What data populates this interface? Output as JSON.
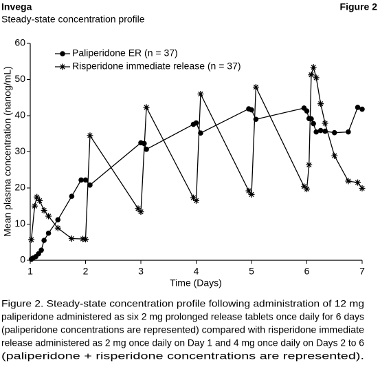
{
  "header": {
    "left": "Invega",
    "right": "Figure 2"
  },
  "chart_data": {
    "type": "line",
    "title": "Steady-state concentration profile",
    "x_label": "Time (Days)",
    "y_label": "Mean plasma concentration (nanog/mL)",
    "xlim": [
      1,
      7
    ],
    "xticks": [
      1,
      2,
      3,
      4,
      5,
      6,
      7
    ],
    "ylim": [
      0,
      60
    ],
    "yticks": [
      0,
      10,
      20,
      30,
      40,
      50,
      60
    ],
    "legend": "upper left",
    "series": [
      {
        "name": "Paliperidone ER (n = 37)",
        "color": "#000000",
        "marker": "circle",
        "x": [
          1.02,
          1.05,
          1.1,
          1.15,
          1.2,
          1.25,
          1.33,
          1.5,
          1.75,
          1.92,
          2.0,
          2.08,
          3.0,
          3.06,
          3.1,
          3.95,
          4.0,
          4.08,
          4.95,
          5.0,
          5.08,
          5.95,
          6.0,
          6.04,
          6.08,
          6.12,
          6.17,
          6.25,
          6.33,
          6.5,
          6.75,
          6.92,
          7.0
        ],
        "values": [
          0.3,
          0.6,
          1.0,
          1.8,
          2.8,
          5.5,
          7.5,
          11.2,
          17.7,
          22.2,
          22.2,
          20.8,
          32.5,
          32.3,
          30.7,
          37.6,
          38.0,
          35.2,
          41.9,
          41.6,
          39.0,
          42.1,
          41.3,
          39.2,
          39.1,
          37.8,
          35.5,
          35.9,
          35.7,
          35.3,
          35.5,
          42.3,
          41.8
        ]
      },
      {
        "name": "Risperidone immediate release (n = 37)",
        "color": "#000000",
        "marker": "asterisk",
        "x": [
          1.02,
          1.08,
          1.12,
          1.17,
          1.25,
          1.33,
          1.5,
          1.75,
          1.95,
          2.0,
          2.08,
          2.95,
          3.0,
          3.1,
          3.95,
          4.0,
          4.08,
          4.95,
          5.0,
          5.08,
          5.95,
          6.0,
          6.04,
          6.08,
          6.12,
          6.17,
          6.25,
          6.33,
          6.5,
          6.75,
          6.92,
          7.0
        ],
        "values": [
          5.7,
          15.0,
          17.5,
          16.5,
          13.8,
          12.2,
          8.9,
          6.0,
          5.9,
          5.8,
          34.5,
          14.3,
          13.4,
          42.3,
          17.3,
          16.5,
          46.0,
          19.2,
          18.2,
          47.9,
          20.4,
          19.7,
          26.4,
          51.3,
          53.4,
          50.5,
          43.3,
          37.9,
          28.9,
          21.9,
          21.5,
          19.9
        ]
      }
    ]
  },
  "caption": [
    "Figure 2. Steady-state concentration profile following administration of 12 mg",
    "paliperidone administered as six 2 mg prolonged release tablets once daily for 6 days",
    "(paliperidone concentrations are represented) compared with risperidone immediate",
    "release administered as 2 mg once daily on Day 1 and 4 mg once daily on Days 2 to 6",
    "(paliperidone + risperidone concentrations are represented)."
  ]
}
